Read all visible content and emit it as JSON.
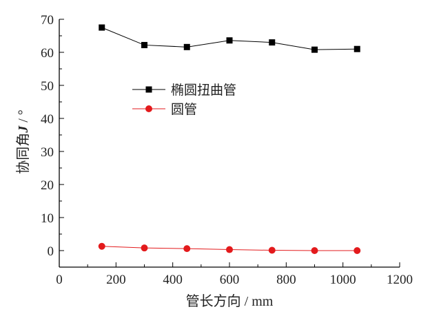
{
  "chart_data": {
    "type": "line",
    "title": "",
    "xlabel": "管长方向 / mm",
    "ylabel_prefix": "协同角",
    "ylabel_symbol": "J",
    "ylabel_suffix": " / °",
    "xlim": [
      0,
      1200
    ],
    "ylim": [
      -5,
      70
    ],
    "xticks": [
      0,
      200,
      400,
      600,
      800,
      1000,
      1200
    ],
    "yticks": [
      0,
      10,
      20,
      30,
      40,
      50,
      60,
      70
    ],
    "x": [
      150,
      300,
      450,
      600,
      750,
      900,
      1050
    ],
    "series": [
      {
        "name": "椭圆扭曲管",
        "color": "#000000",
        "marker": "square",
        "values": [
          67.5,
          62.2,
          61.6,
          63.6,
          63.0,
          60.8,
          61.0
        ]
      },
      {
        "name": "圆管",
        "color": "#e31a1c",
        "marker": "circle",
        "values": [
          1.3,
          0.8,
          0.6,
          0.3,
          0.1,
          0.0,
          0.0
        ]
      }
    ],
    "legend_position": "upper-left-center",
    "grid": false
  }
}
